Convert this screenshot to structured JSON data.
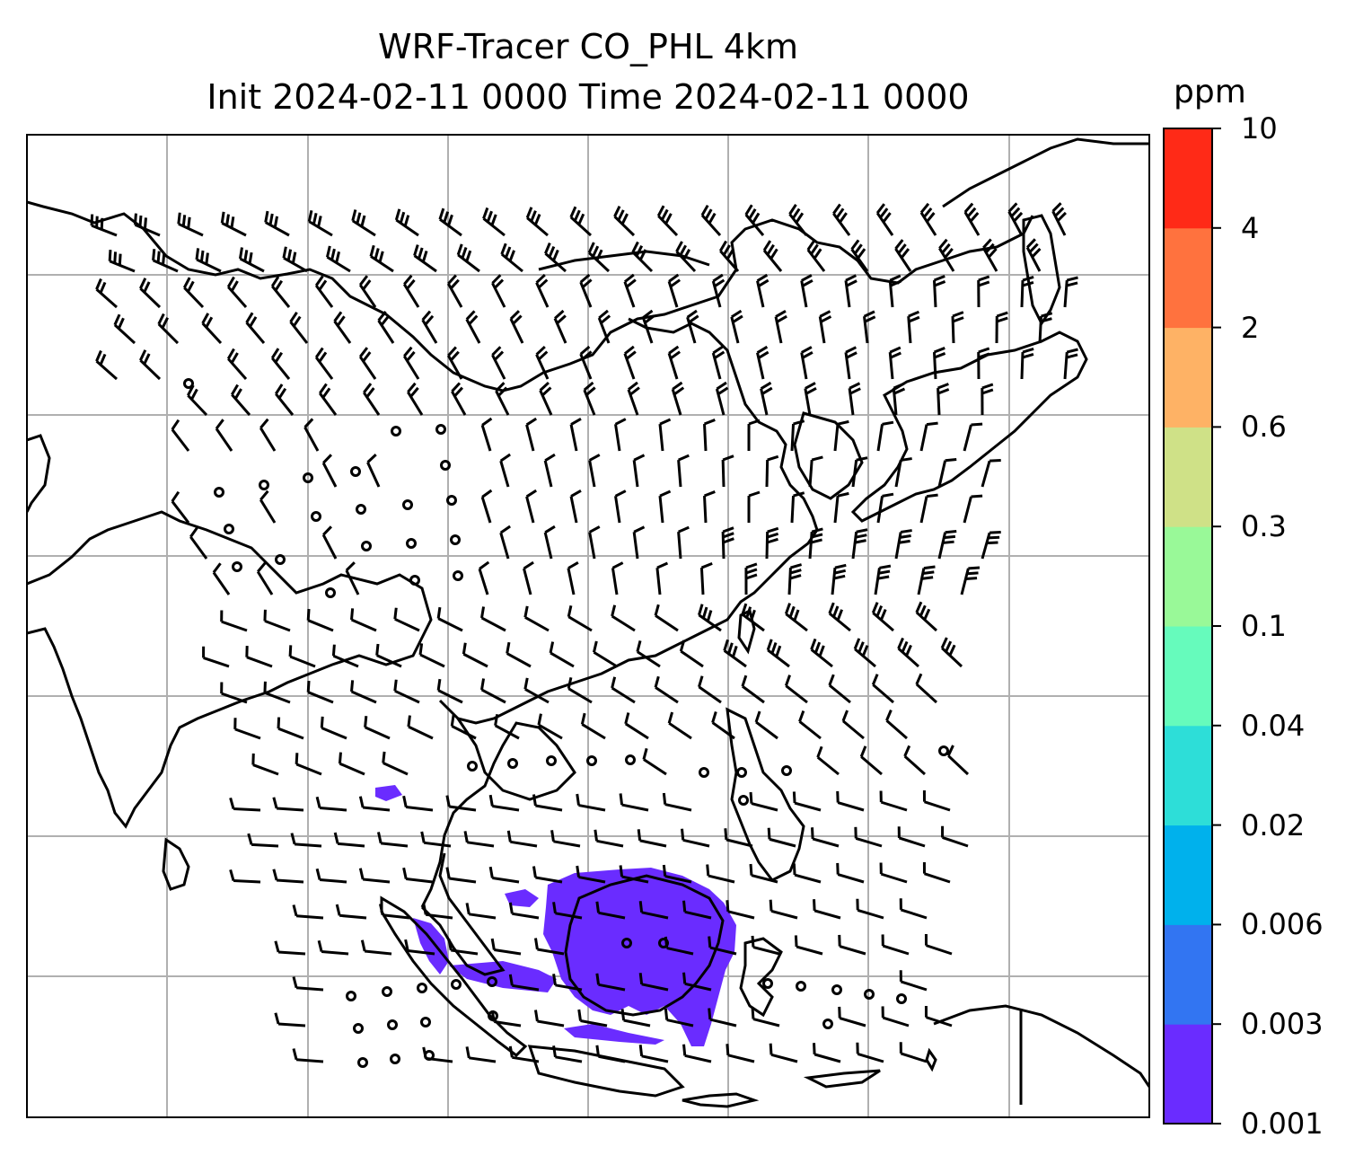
{
  "title": {
    "line1": "WRF-Tracer CO_PHL 4km",
    "line2": "Init 2024-02-11 0000 Time 2024-02-11 0000"
  },
  "colorbar": {
    "unit": "ppm",
    "levels": [
      "0.001",
      "0.003",
      "0.006",
      "0.02",
      "0.04",
      "0.1",
      "0.3",
      "0.6",
      "2",
      "4",
      "10"
    ],
    "colors": [
      "#6a2cff",
      "#3275f2",
      "#00b1ec",
      "#2dded8",
      "#66fbbc",
      "#99f998",
      "#cfe187",
      "#feb265",
      "#ff723e",
      "#ff2a17"
    ]
  },
  "map": {
    "gridlines": true,
    "coastline_color": "#000000",
    "grid_color": "#b0b0b0",
    "plume_color": "#6a2cff",
    "wind_barb_color": "#000000"
  }
}
